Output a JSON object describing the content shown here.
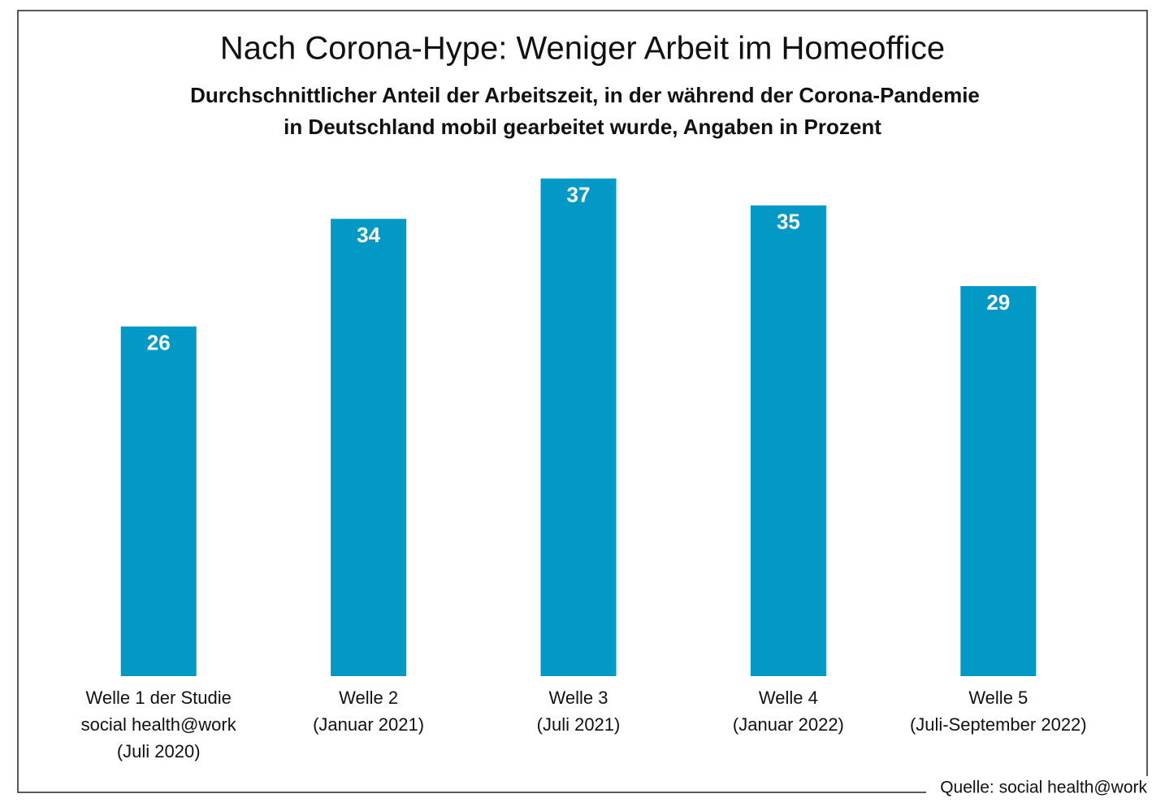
{
  "chart_data": {
    "type": "bar",
    "title": "Nach Corona-Hype: Weniger Arbeit im Homeoffice",
    "subtitle": [
      "Durchschnittlicher Anteil der Arbeitszeit, in der während der Corona-Pandemie",
      "in Deutschland mobil gearbeitet wurde, Angaben in Prozent"
    ],
    "categories": [
      [
        "Welle 1 der Studie",
        "social health@work",
        "(Juli 2020)"
      ],
      [
        "Welle 2",
        "(Januar 2021)"
      ],
      [
        "Welle 3",
        "(Juli 2021)"
      ],
      [
        "Welle 4",
        "(Januar 2022)"
      ],
      [
        "Welle 5",
        "(Juli-September 2022)"
      ]
    ],
    "values": [
      26,
      34,
      37,
      35,
      29
    ],
    "color": "#0399c6",
    "ylim": [
      0,
      40
    ],
    "source": "Quelle: social health@work"
  }
}
